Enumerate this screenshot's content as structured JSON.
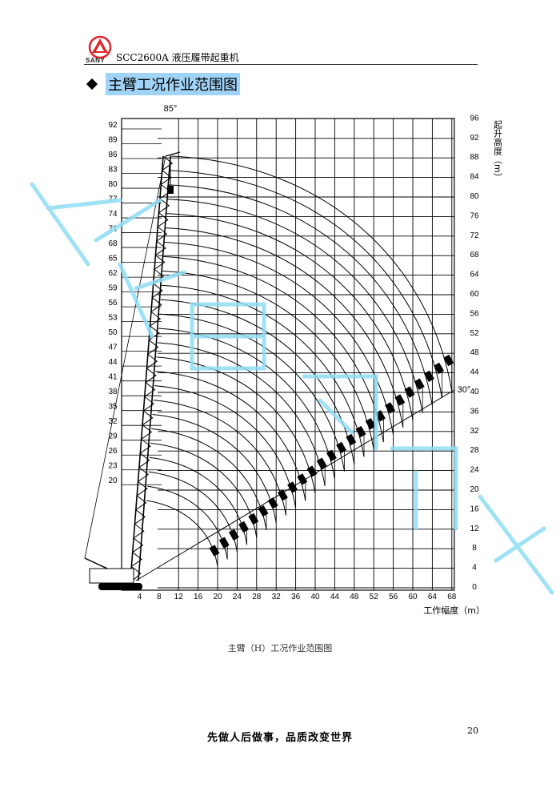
{
  "header": {
    "brand": "SANY",
    "model": "SCC2600A 液压履带起重机",
    "brand_color": "#e0262b"
  },
  "section": {
    "title": "主臂工况作业范围图",
    "highlight_color": "#9fd3f7"
  },
  "chart": {
    "boom_angle_label": "85°",
    "min_angle_label": "30°",
    "x_axis_label": "工作幅度（m）",
    "y_axis_label": "起升高度（m）",
    "x_ticks": [
      "4",
      "8",
      "12",
      "16",
      "20",
      "24",
      "28",
      "32",
      "36",
      "40",
      "44",
      "48",
      "52",
      "56",
      "60",
      "64",
      "68"
    ],
    "right_ticks": [
      "96",
      "92",
      "88",
      "84",
      "80",
      "76",
      "72",
      "68",
      "64",
      "60",
      "56",
      "52",
      "48",
      "44",
      "40",
      "36",
      "32",
      "28",
      "24",
      "20",
      "16",
      "12",
      "8",
      "4",
      "0"
    ],
    "boom_lengths": [
      "92",
      "89",
      "86",
      "83",
      "80",
      "77",
      "74",
      "71",
      "68",
      "65",
      "62",
      "59",
      "56",
      "53",
      "50",
      "47",
      "44",
      "41",
      "38",
      "35",
      "32",
      "29",
      "26",
      "23",
      "20"
    ]
  },
  "caption": "主臂（H）工况作业范围图",
  "footer": {
    "slogan": "先做人后做事，品质改变世界",
    "page_number": "20"
  },
  "watermark_color": "#8fdcf5"
}
